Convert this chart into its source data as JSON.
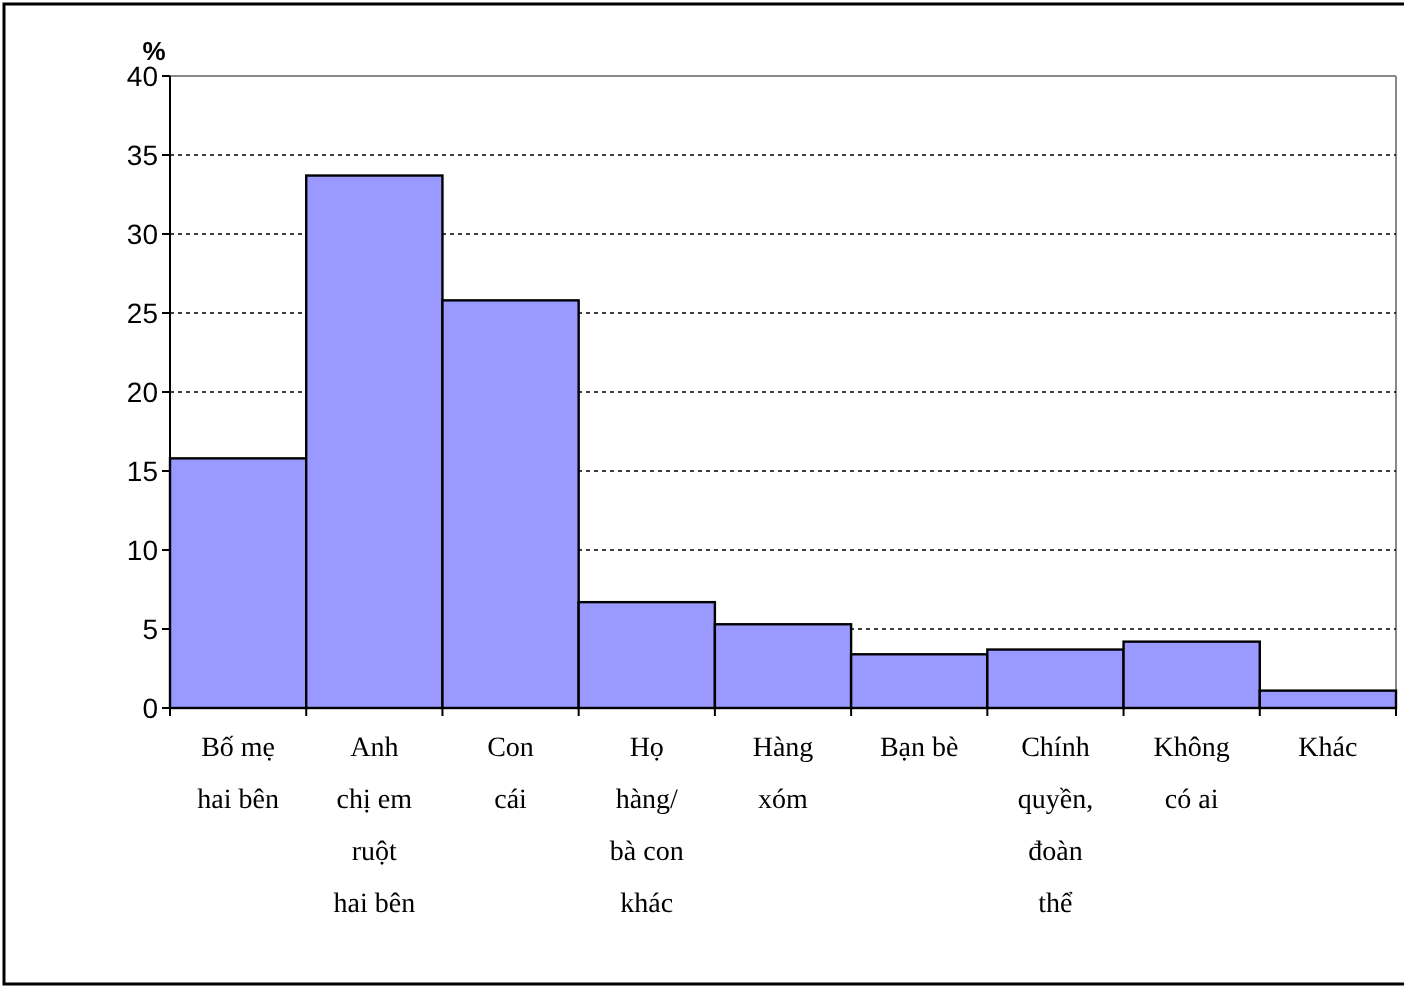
{
  "chart_data": {
    "type": "bar",
    "ylabel": "%",
    "categories": [
      "Bố mẹ\nhai bên",
      "Anh\nchị em\nruột\nhai bên",
      "Con\ncái",
      "Họ\nhàng/\nbà con\nkhác",
      "Hàng\nxóm",
      "Bạn bè",
      "Chính\nquyền,\nđoàn\nthể",
      "Không\ncó ai",
      "Khác"
    ],
    "values": [
      15.8,
      33.7,
      25.8,
      6.7,
      5.3,
      3.4,
      3.7,
      4.2,
      1.1
    ],
    "color": "#9999ff",
    "ylim": [
      0,
      40
    ],
    "yticks": [
      0,
      5,
      10,
      15,
      20,
      25,
      30,
      35,
      40
    ],
    "grid": "y"
  }
}
